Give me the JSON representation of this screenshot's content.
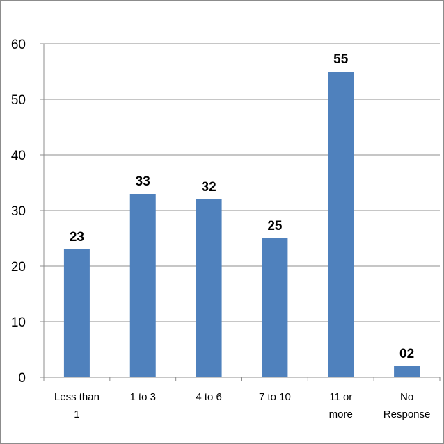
{
  "chart_data": {
    "type": "bar",
    "title": "",
    "xlabel": "",
    "ylabel": "",
    "categories": [
      [
        "Less than",
        "1"
      ],
      [
        "1 to 3"
      ],
      [
        "4 to 6"
      ],
      [
        "7 to 10"
      ],
      [
        "11 or",
        "more"
      ],
      [
        "No",
        "Response"
      ]
    ],
    "values": [
      23,
      33,
      32,
      25,
      55,
      2
    ],
    "data_labels": [
      "23",
      "33",
      "32",
      "25",
      "55",
      "02"
    ],
    "ylim": [
      0,
      60
    ],
    "yticks": [
      0,
      10,
      20,
      30,
      40,
      50,
      60
    ],
    "grid": true,
    "legend": "none",
    "colors": {
      "bar": "#4f81bd",
      "grid": "#8c8c8c",
      "axis": "#8c8c8c"
    }
  }
}
